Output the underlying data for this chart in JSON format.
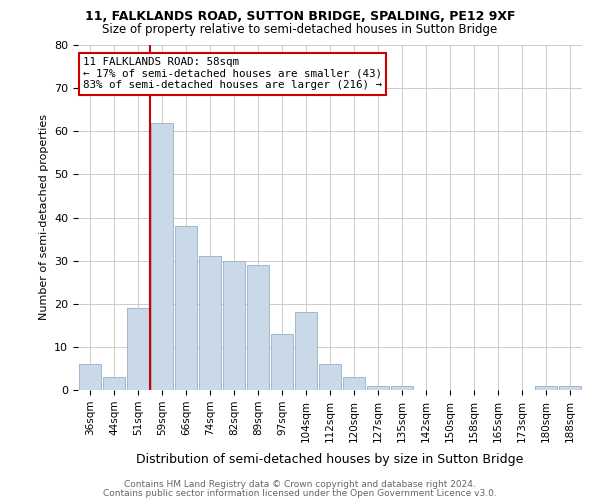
{
  "title1": "11, FALKLANDS ROAD, SUTTON BRIDGE, SPALDING, PE12 9XF",
  "title2": "Size of property relative to semi-detached houses in Sutton Bridge",
  "xlabel": "Distribution of semi-detached houses by size in Sutton Bridge",
  "ylabel": "Number of semi-detached properties",
  "categories": [
    "36sqm",
    "44sqm",
    "51sqm",
    "59sqm",
    "66sqm",
    "74sqm",
    "82sqm",
    "89sqm",
    "97sqm",
    "104sqm",
    "112sqm",
    "120sqm",
    "127sqm",
    "135sqm",
    "142sqm",
    "150sqm",
    "158sqm",
    "165sqm",
    "173sqm",
    "180sqm",
    "188sqm"
  ],
  "values": [
    6,
    3,
    19,
    62,
    38,
    31,
    30,
    29,
    13,
    18,
    6,
    3,
    1,
    1,
    0,
    0,
    0,
    0,
    0,
    1,
    1
  ],
  "bar_color": "#c9d9e8",
  "bar_edgecolor": "#a0b8cc",
  "highlight_index": 3,
  "highlight_line_color": "#cc0000",
  "annotation_box_color": "#ffffff",
  "annotation_box_edgecolor": "#cc0000",
  "annotation_text1": "11 FALKLANDS ROAD: 58sqm",
  "annotation_text2": "← 17% of semi-detached houses are smaller (43)",
  "annotation_text3": "83% of semi-detached houses are larger (216) →",
  "ylim": [
    0,
    80
  ],
  "yticks": [
    0,
    10,
    20,
    30,
    40,
    50,
    60,
    70,
    80
  ],
  "footer1": "Contains HM Land Registry data © Crown copyright and database right 2024.",
  "footer2": "Contains public sector information licensed under the Open Government Licence v3.0.",
  "background_color": "#ffffff",
  "grid_color": "#cccccc"
}
